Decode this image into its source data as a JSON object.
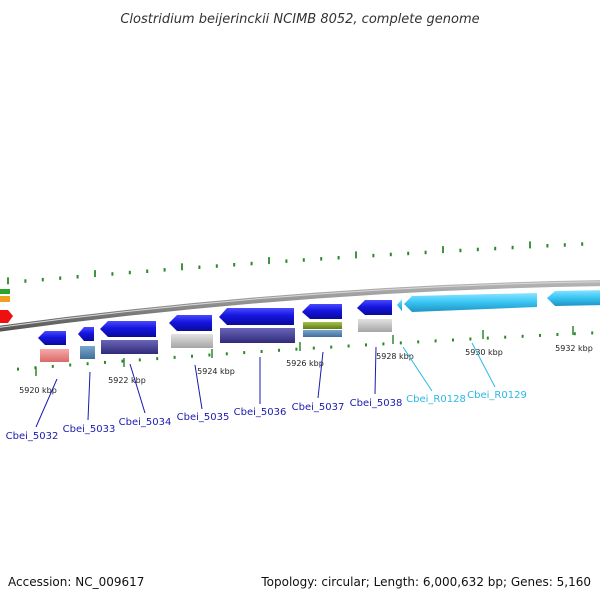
{
  "title": "Clostridium beijerinckii NCIMB 8052, complete genome",
  "footer": {
    "accession": "Accession: NC_009617",
    "summary": "Topology: circular; Length: 6,000,632 bp; Genes: 5,160"
  },
  "colors": {
    "cds_blue": "#1515e0",
    "rna_cyan": "#3cc8f5",
    "label_blue": "#1a1ab0",
    "label_cyan": "#2ab8e6",
    "backbone": "#8a8a8a",
    "tick_green": "#2a8a2a"
  },
  "axis": {
    "ticks": [
      {
        "label": "5920 kbp"
      },
      {
        "label": "5922 kbp"
      },
      {
        "label": "5924 kbp"
      },
      {
        "label": "5926 kbp"
      },
      {
        "label": "5928 kbp"
      },
      {
        "label": "5930 kbp"
      },
      {
        "label": "5932 kbp"
      }
    ]
  },
  "genes": [
    {
      "name": "Cbei_5032",
      "type": "CDS"
    },
    {
      "name": "Cbei_5033",
      "type": "CDS"
    },
    {
      "name": "Cbei_5034",
      "type": "CDS"
    },
    {
      "name": "Cbei_5035",
      "type": "CDS"
    },
    {
      "name": "Cbei_5036",
      "type": "CDS"
    },
    {
      "name": "Cbei_5037",
      "type": "CDS"
    },
    {
      "name": "Cbei_5038",
      "type": "CDS"
    },
    {
      "name": "Cbei_R0128",
      "type": "rRNA"
    },
    {
      "name": "Cbei_R0129",
      "type": "rRNA"
    }
  ]
}
